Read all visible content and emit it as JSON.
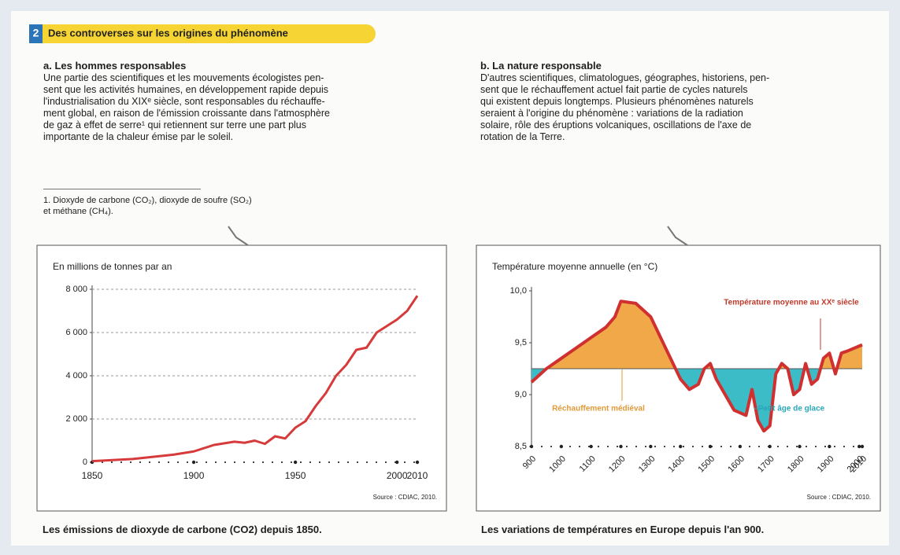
{
  "header": {
    "number": "2",
    "title": "Des controverses sur les origines du phénomène"
  },
  "section_a": {
    "heading": "a. Les hommes responsables",
    "lines": [
      "Une partie des scientifiques et les mouvements écologistes pen-",
      "sent que les activités humaines, en développement rapide depuis",
      "l'industrialisation du XIXᵉ siècle, sont responsables du réchauffe-",
      "ment global, en raison de l'émission croissante dans l'atmosphère",
      "de gaz à effet de serre¹ qui retiennent sur terre une part plus",
      "importante de la chaleur émise par le soleil."
    ],
    "footnote": [
      "1. Dioxyde de carbone (CO₂), dioxyde de soufre (SO₂)",
      "et méthane (CH₄)."
    ]
  },
  "section_b": {
    "heading": "b. La nature responsable",
    "lines": [
      "D'autres scientifiques, climatologues, géographes, historiens, pen-",
      "sent que le réchauffement actuel fait partie de cycles naturels",
      "qui existent depuis longtemps. Plusieurs phénomènes naturels",
      "seraient à l'origine du phénomène : variations de la radiation",
      "solaire, rôle des éruptions volcaniques, oscillations de l'axe de",
      "rotation de la Terre."
    ]
  },
  "chart_data": [
    {
      "type": "line",
      "y_label": "En millions de tonnes par an",
      "source": "Source : CDIAC, 2010.",
      "caption": "Les émissions de dioxyde de carbone (CO2) depuis 1850.",
      "color": "#d63a3a",
      "grid": true,
      "x": [
        1850,
        1860,
        1870,
        1880,
        1890,
        1900,
        1910,
        1920,
        1925,
        1930,
        1935,
        1940,
        1945,
        1950,
        1955,
        1960,
        1965,
        1970,
        1975,
        1980,
        1985,
        1990,
        1995,
        2000,
        2005,
        2010
      ],
      "values": [
        50,
        100,
        150,
        250,
        350,
        500,
        800,
        950,
        900,
        1000,
        850,
        1200,
        1100,
        1600,
        1900,
        2600,
        3200,
        4000,
        4500,
        5200,
        5300,
        6000,
        6300,
        6600,
        7000,
        7700
      ],
      "xlim": [
        1850,
        2010
      ],
      "xticks": [
        1850,
        1900,
        1950,
        2000,
        2010
      ],
      "ylim": [
        0,
        8000
      ],
      "yticks": [
        0,
        {
          "value": 2000,
          "label": "2 000"
        },
        {
          "value": 4000,
          "label": "4 000"
        },
        {
          "value": 6000,
          "label": "6 000"
        },
        {
          "value": 8000,
          "label": "8 000"
        }
      ]
    },
    {
      "type": "area",
      "y_label": "Température moyenne annuelle (en °C)",
      "source": "Source : CDIAC, 2010.",
      "caption": "Les variations de températures en Europe depuis l'an 900.",
      "color": "#d03030",
      "above_color": "#f0a848",
      "below_color": "#3bbcc6",
      "reference_line": 9.25,
      "x": [
        900,
        950,
        1000,
        1050,
        1100,
        1150,
        1180,
        1200,
        1250,
        1300,
        1350,
        1400,
        1430,
        1460,
        1480,
        1500,
        1520,
        1550,
        1580,
        1620,
        1640,
        1660,
        1680,
        1700,
        1720,
        1740,
        1760,
        1780,
        1800,
        1820,
        1840,
        1860,
        1880,
        1900,
        1920,
        1940,
        1960,
        2010
      ],
      "values": [
        9.12,
        9.25,
        9.35,
        9.45,
        9.55,
        9.65,
        9.75,
        9.9,
        9.88,
        9.75,
        9.45,
        9.15,
        9.05,
        9.1,
        9.25,
        9.3,
        9.15,
        9.0,
        8.85,
        8.8,
        9.05,
        8.75,
        8.65,
        8.7,
        9.2,
        9.3,
        9.25,
        9.0,
        9.05,
        9.3,
        9.1,
        9.15,
        9.35,
        9.4,
        9.2,
        9.4,
        9.42,
        9.48
      ],
      "xlim": [
        900,
        2010
      ],
      "xticks": [
        900,
        1000,
        1100,
        1200,
        1300,
        1400,
        1500,
        1600,
        1700,
        1800,
        1900,
        2000,
        2010
      ],
      "ylim": [
        8.5,
        10.0
      ],
      "yticks": [
        {
          "value": 8.5,
          "label": "8,5"
        },
        {
          "value": 9.0,
          "label": "9,0"
        },
        {
          "value": 9.5,
          "label": "9,5"
        },
        {
          "value": 10.0,
          "label": "10,0"
        }
      ],
      "annotations": [
        {
          "text": "Température moyenne au XXᵉ siècle",
          "color": "#c0392b"
        },
        {
          "text": "Réchauffement médiéval",
          "color": "#e09a3a"
        },
        {
          "text": "Petit âge de glace",
          "color": "#2aa8b8"
        }
      ]
    }
  ]
}
